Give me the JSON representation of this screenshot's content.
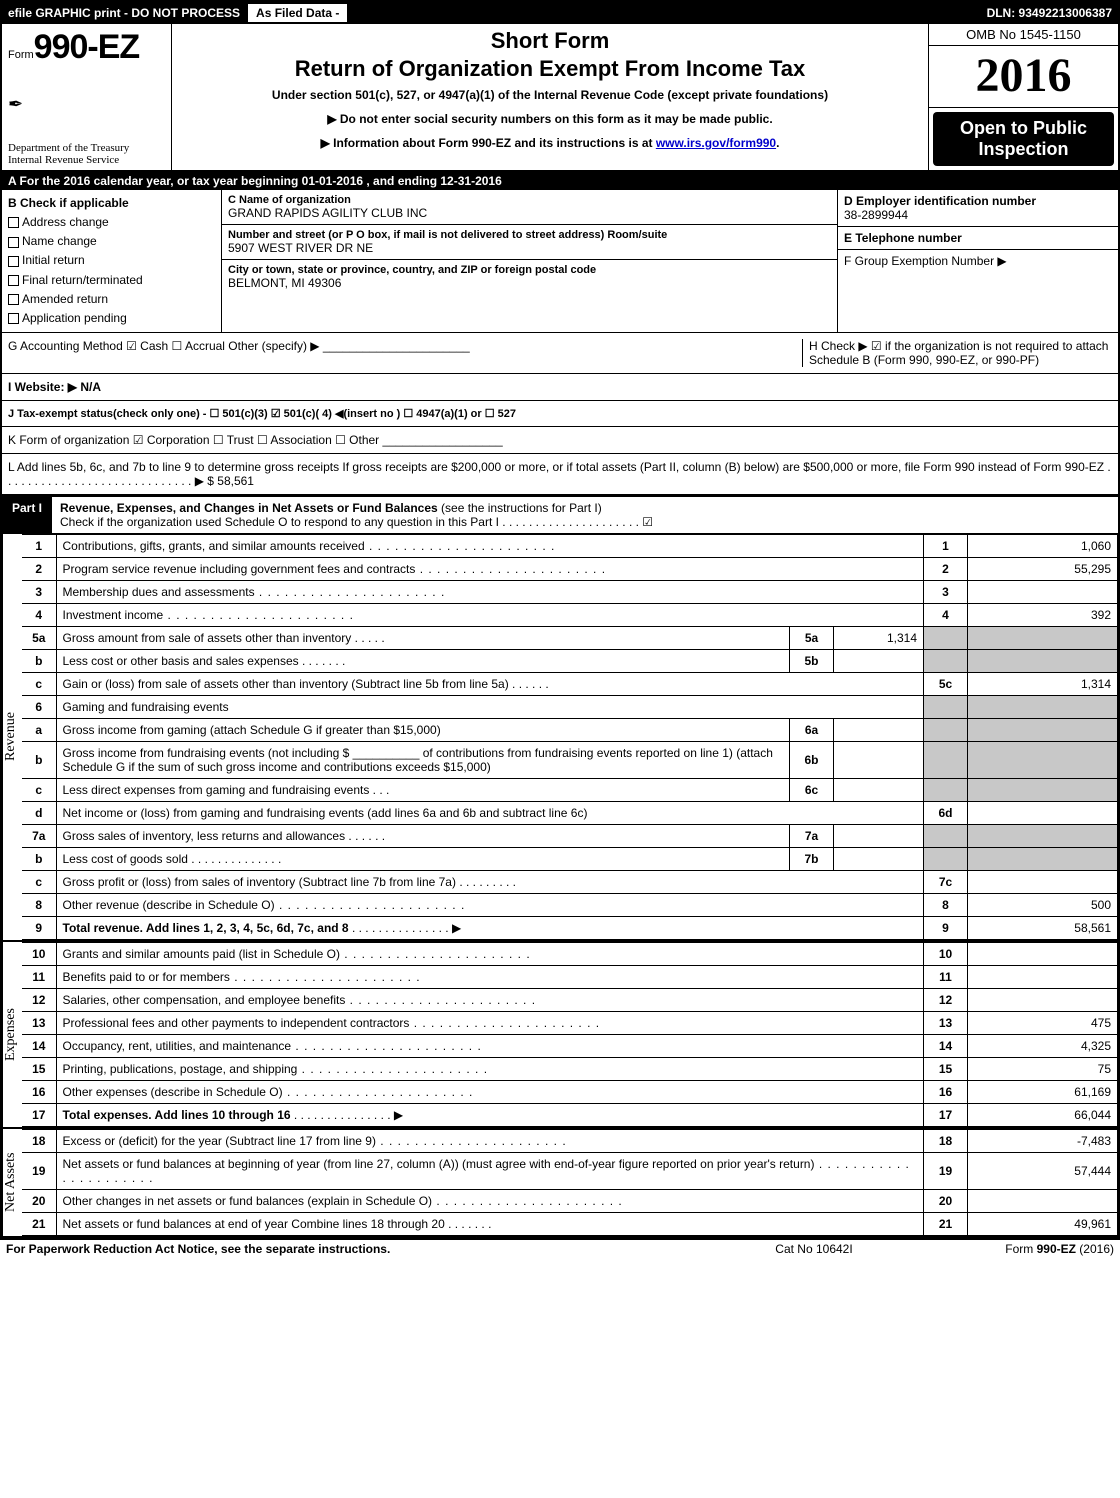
{
  "colors": {
    "black": "#000000",
    "white": "#ffffff",
    "shade": "#c8c8c8",
    "link": "#0000cc"
  },
  "topbar": {
    "efile": "efile GRAPHIC print - DO NOT PROCESS",
    "asfiled": "As Filed Data -",
    "dln": "DLN: 93492213006387"
  },
  "header": {
    "form_prefix": "Form",
    "form_number": "990-EZ",
    "dept1": "Department of the Treasury",
    "dept2": "Internal Revenue Service",
    "short_form": "Short Form",
    "title": "Return of Organization Exempt From Income Tax",
    "sub": "Under section 501(c), 527, or 4947(a)(1) of the Internal Revenue Code (except private foundations)",
    "note1": "▶ Do not enter social security numbers on this form as it may be made public.",
    "note2_pre": "▶ Information about Form 990-EZ and its instructions is at ",
    "note2_link": "www.irs.gov/form990",
    "note2_post": ".",
    "omb": "OMB No 1545-1150",
    "year": "2016",
    "open_public": "Open to Public Inspection"
  },
  "rowA": "A  For the 2016 calendar year, or tax year beginning 01-01-2016           , and ending 12-31-2016",
  "sectionB": {
    "head": "B  Check if applicable",
    "items": [
      "Address change",
      "Name change",
      "Initial return",
      "Final return/terminated",
      "Amended return",
      "Application pending"
    ]
  },
  "sectionC": {
    "c_head": "C Name of organization",
    "c_val": "GRAND RAPIDS AGILITY CLUB INC",
    "addr_head": "Number and street (or P O box, if mail is not delivered to street address)  Room/suite",
    "addr_val": "5907 WEST RIVER DR NE",
    "city_head": "City or town, state or province, country, and ZIP or foreign postal code",
    "city_val": "BELMONT, MI  49306"
  },
  "sectionD": {
    "d_head": "D Employer identification number",
    "d_val": "38-2899944",
    "e_head": "E Telephone number",
    "e_val": "",
    "f_head": "F Group Exemption Number   ▶",
    "f_val": ""
  },
  "rowG_left": "G Accounting Method    ☑ Cash   ☐ Accrual   Other (specify) ▶ ______________________",
  "rowH": "H   Check ▶   ☑  if the organization is not required to attach Schedule B (Form 990, 990-EZ, or 990-PF)",
  "rowI": "I Website: ▶ N/A",
  "rowJ": "J Tax-exempt status(check only one) - ☐ 501(c)(3)  ☑ 501(c)( 4) ◀(insert no ) ☐ 4947(a)(1) or ☐ 527",
  "rowK": "K Form of organization    ☑ Corporation  ☐ Trust  ☐ Association  ☐ Other  __________________",
  "rowL": "L Add lines 5b, 6c, and 7b to line 9 to determine gross receipts  If gross receipts are $200,000 or more, or if total assets (Part II, column (B) below) are $500,000 or more, file Form 990 instead of Form 990-EZ . . . . . . . . . . . . . . . . . . . . . . . . . . . . . ▶ $ 58,561",
  "partI": {
    "tab": "Part I",
    "title": "Revenue, Expenses, and Changes in Net Assets or Fund Balances ",
    "note": "(see the instructions for Part I)",
    "check": "Check if the organization used Schedule O to respond to any question in this Part I . . . . . . . . . . . . . . . . . . . . . ☑"
  },
  "sideLabels": {
    "revenue": "Revenue",
    "expenses": "Expenses",
    "netassets": "Net Assets"
  },
  "lines": {
    "l1": {
      "n": "1",
      "t": "Contributions, gifts, grants, and similar amounts received",
      "r": "1",
      "v": "1,060"
    },
    "l2": {
      "n": "2",
      "t": "Program service revenue including government fees and contracts",
      "r": "2",
      "v": "55,295"
    },
    "l3": {
      "n": "3",
      "t": "Membership dues and assessments",
      "r": "3",
      "v": ""
    },
    "l4": {
      "n": "4",
      "t": "Investment income",
      "r": "4",
      "v": "392"
    },
    "l5a": {
      "n": "5a",
      "t": "Gross amount from sale of assets other than inventory",
      "m": "5a",
      "mv": "1,314"
    },
    "l5b": {
      "n": "b",
      "t": "Less  cost or other basis and sales expenses",
      "m": "5b",
      "mv": ""
    },
    "l5c": {
      "n": "c",
      "t": "Gain or (loss) from sale of assets other than inventory (Subtract line 5b from line 5a)",
      "r": "5c",
      "v": "1,314"
    },
    "l6": {
      "n": "6",
      "t": "Gaming and fundraising events"
    },
    "l6a": {
      "n": "a",
      "t": "Gross income from gaming (attach Schedule G if greater than $15,000)",
      "m": "6a",
      "mv": ""
    },
    "l6b": {
      "n": "b",
      "t": "Gross income from fundraising events (not including $ __________ of contributions from fundraising events reported on line 1) (attach Schedule G if the sum of such gross income and contributions exceeds $15,000)",
      "m": "6b",
      "mv": ""
    },
    "l6c": {
      "n": "c",
      "t": "Less  direct expenses from gaming and fundraising events",
      "m": "6c",
      "mv": ""
    },
    "l6d": {
      "n": "d",
      "t": "Net income or (loss) from gaming and fundraising events (add lines 6a and 6b and subtract line 6c)",
      "r": "6d",
      "v": ""
    },
    "l7a": {
      "n": "7a",
      "t": "Gross sales of inventory, less returns and allowances",
      "m": "7a",
      "mv": ""
    },
    "l7b": {
      "n": "b",
      "t": "Less  cost of goods sold",
      "m": "7b",
      "mv": ""
    },
    "l7c": {
      "n": "c",
      "t": "Gross profit or (loss) from sales of inventory (Subtract line 7b from line 7a)",
      "r": "7c",
      "v": ""
    },
    "l8": {
      "n": "8",
      "t": "Other revenue (describe in Schedule O)",
      "r": "8",
      "v": "500"
    },
    "l9": {
      "n": "9",
      "t": "Total revenue. Add lines 1, 2, 3, 4, 5c, 6d, 7c, and 8",
      "r": "9",
      "v": "58,561",
      "bold": true,
      "arrow": true
    },
    "l10": {
      "n": "10",
      "t": "Grants and similar amounts paid (list in Schedule O)",
      "r": "10",
      "v": ""
    },
    "l11": {
      "n": "11",
      "t": "Benefits paid to or for members",
      "r": "11",
      "v": ""
    },
    "l12": {
      "n": "12",
      "t": "Salaries, other compensation, and employee benefits",
      "r": "12",
      "v": ""
    },
    "l13": {
      "n": "13",
      "t": "Professional fees and other payments to independent contractors",
      "r": "13",
      "v": "475"
    },
    "l14": {
      "n": "14",
      "t": "Occupancy, rent, utilities, and maintenance",
      "r": "14",
      "v": "4,325"
    },
    "l15": {
      "n": "15",
      "t": "Printing, publications, postage, and shipping",
      "r": "15",
      "v": "75"
    },
    "l16": {
      "n": "16",
      "t": "Other expenses (describe in Schedule O)",
      "r": "16",
      "v": "61,169"
    },
    "l17": {
      "n": "17",
      "t": "Total expenses. Add lines 10 through 16",
      "r": "17",
      "v": "66,044",
      "bold": true,
      "arrow": true
    },
    "l18": {
      "n": "18",
      "t": "Excess or (deficit) for the year (Subtract line 17 from line 9)",
      "r": "18",
      "v": "-7,483"
    },
    "l19": {
      "n": "19",
      "t": "Net assets or fund balances at beginning of year (from line 27, column (A)) (must agree with end-of-year figure reported on prior year's return)",
      "r": "19",
      "v": "57,444"
    },
    "l20": {
      "n": "20",
      "t": "Other changes in net assets or fund balances (explain in Schedule O)",
      "r": "20",
      "v": ""
    },
    "l21": {
      "n": "21",
      "t": "Net assets or fund balances at end of year  Combine lines 18 through 20",
      "r": "21",
      "v": "49,961"
    }
  },
  "footer": {
    "f1": "For Paperwork Reduction Act Notice, see the separate instructions.",
    "f2": "Cat No 10642I",
    "f3": "Form 990-EZ (2016)"
  }
}
